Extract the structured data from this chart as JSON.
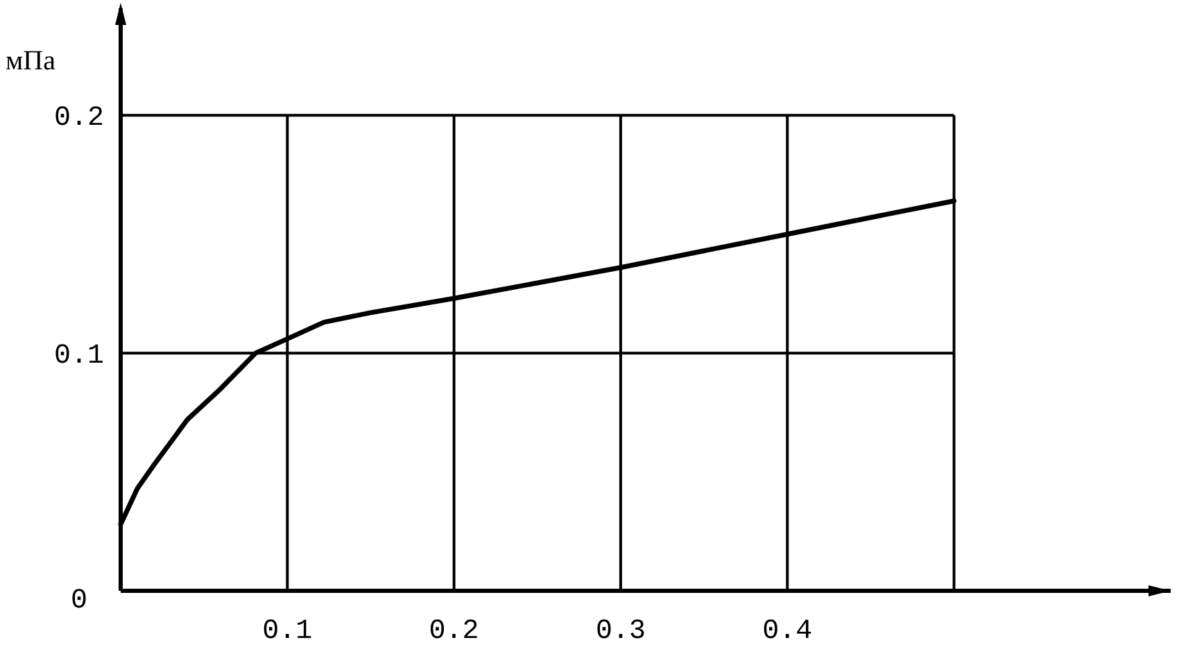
{
  "chart_data": {
    "type": "line",
    "ylabel": "мПа",
    "xlim": [
      0,
      0.63
    ],
    "ylim": [
      0,
      0.245
    ],
    "xticks": [
      {
        "value": 0,
        "label": null
      },
      0.1,
      0.2,
      0.3,
      0.4,
      {
        "value": 0.5,
        "label": null
      }
    ],
    "yticks": [
      0,
      0.1,
      0.2
    ],
    "grid": true,
    "series": [
      {
        "color": "#000000",
        "x": [
          0,
          0.01,
          0.02,
          0.04,
          0.06,
          0.081,
          0.1,
          0.122,
          0.15,
          0.2,
          0.3,
          0.4,
          0.5
        ],
        "values": [
          0.028,
          0.043,
          0.053,
          0.072,
          0.085,
          0.1,
          0.106,
          0.113,
          0.117,
          0.123,
          0.136,
          0.15,
          0.164
        ]
      }
    ]
  }
}
